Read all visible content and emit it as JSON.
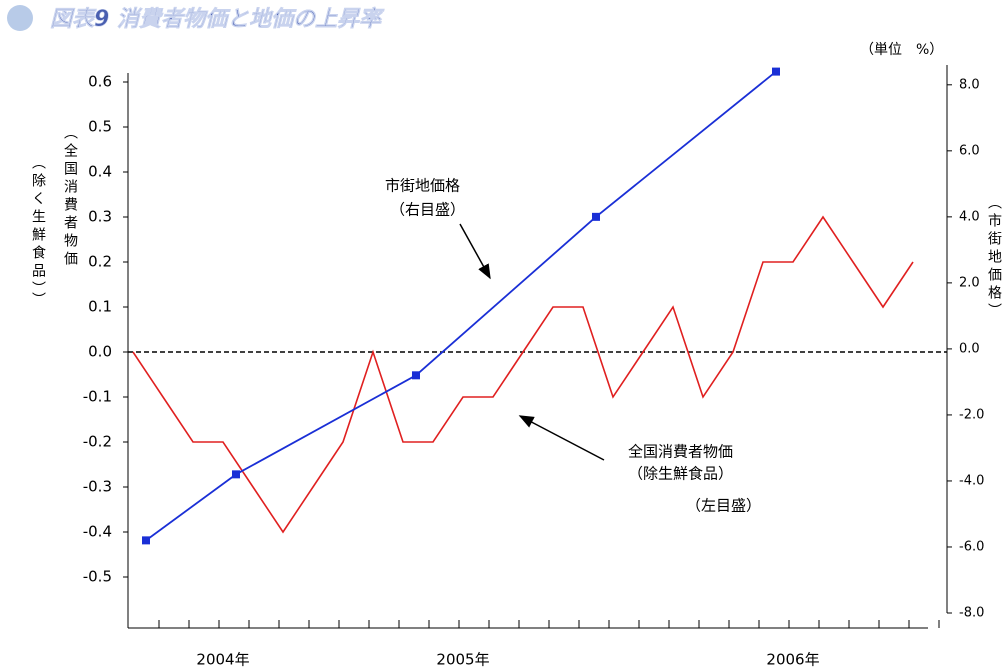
{
  "chart_data": {
    "type": "line",
    "title": "図表9 消費者物価と地価の上昇率",
    "unit_label": "（単位　%）",
    "y_label": [
      "（全国消費者物価",
      "（除く生鮮食品））"
    ],
    "y2_label": "（市街地価格）",
    "annotations": [
      "市街地価格",
      "（右目盛）",
      "全国消費者物価",
      "（除生鮮食品）",
      "（左目盛）"
    ],
    "categories": [
      null,
      null,
      "2004年",
      null,
      null,
      null,
      null,
      null,
      null,
      null,
      "2005年",
      null,
      null,
      null,
      null,
      null,
      null,
      null,
      null,
      null,
      null,
      "2006年",
      null,
      null,
      null,
      null,
      null
    ],
    "series": [
      {
        "name": "全国消費者物価（除生鮮食品）",
        "color": "#e02020",
        "values": [
          0.0,
          -0.1,
          -0.2,
          -0.2,
          -0.3,
          -0.4,
          -0.3,
          -0.2,
          0.0,
          -0.2,
          -0.2,
          -0.1,
          -0.1,
          0.0,
          0.1,
          0.1,
          -0.1,
          0.0,
          0.1,
          -0.1,
          0.0,
          0.2,
          0.2,
          0.3,
          0.2,
          0.1,
          0.2
        ]
      },
      {
        "name": "市街地価格",
        "color": "#1a2fd6",
        "axis": "y2",
        "values": [
          -5.8,
          null,
          null,
          -3.8,
          null,
          null,
          null,
          null,
          null,
          -0.8,
          null,
          null,
          null,
          null,
          null,
          4.0,
          null,
          null,
          null,
          null,
          null,
          8.4,
          null,
          null,
          null,
          null,
          null
        ]
      }
    ],
    "ylim": [
      -0.6,
      0.62
    ],
    "yticks": [
      {
        "value": -0.5,
        "label": "-0.5"
      },
      -0.4,
      -0.3,
      -0.2,
      -0.1,
      {
        "value": 0,
        "label": "0.0"
      },
      0.1,
      0.2,
      0.3,
      0.4,
      0.5,
      0.6
    ],
    "y2lim": [
      -8,
      8.6
    ],
    "y2ticks": [
      {
        "value": -8,
        "label": "-8.0"
      },
      {
        "value": -6,
        "label": "-6.0"
      },
      {
        "value": -4,
        "label": "-4.0"
      },
      {
        "value": -2,
        "label": "-2.0"
      },
      {
        "value": 0,
        "label": "0.0"
      },
      {
        "value": 2,
        "label": "2.0"
      },
      {
        "value": 4,
        "label": "4.0"
      },
      {
        "value": 6,
        "label": "6.0"
      },
      {
        "value": 8,
        "label": "8.0"
      }
    ],
    "grid": false
  }
}
